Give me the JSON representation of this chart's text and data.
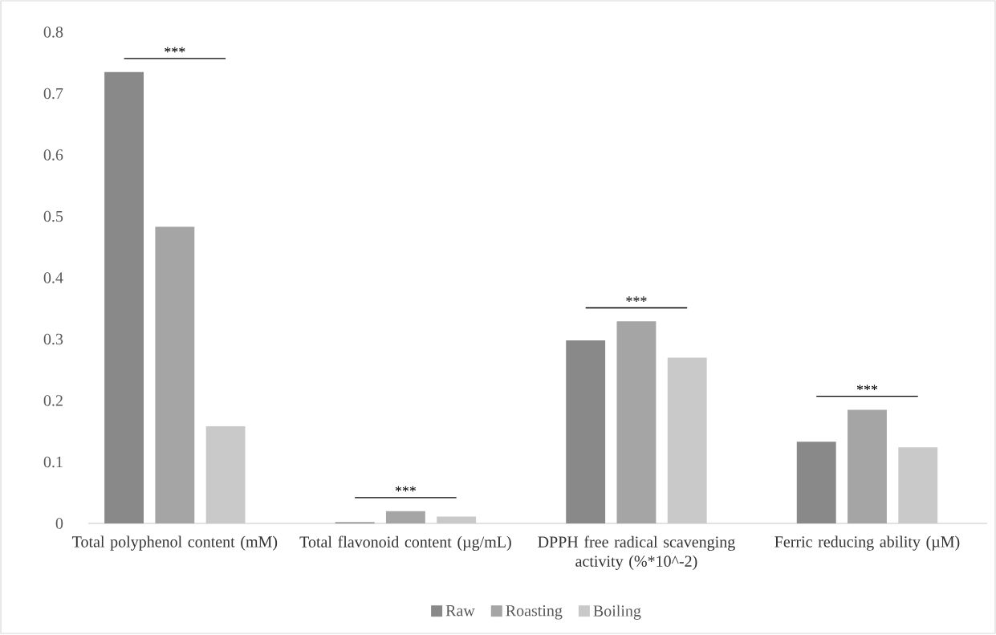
{
  "chart_data": {
    "type": "bar",
    "categories": [
      "Total polyphenol content (mM)",
      "Total flavonoid content (µg/mL)",
      "DPPH free radical scavenging activity (%*10^-2)",
      "Ferric reducing ability (µM)"
    ],
    "series": [
      {
        "name": "Raw",
        "color": "#898989",
        "values": [
          0.735,
          0.002,
          0.298,
          0.133
        ]
      },
      {
        "name": "Roasting",
        "color": "#a5a5a5",
        "values": [
          0.483,
          0.02,
          0.329,
          0.185
        ]
      },
      {
        "name": "Boiling",
        "color": "#c9c9c9",
        "values": [
          0.158,
          0.011,
          0.27,
          0.124
        ]
      }
    ],
    "ylim": [
      0,
      0.8
    ],
    "yticks": [
      0,
      0.1,
      0.2,
      0.3,
      0.4,
      0.5,
      0.6,
      0.7,
      0.8
    ],
    "grid": false,
    "legend": "bottom",
    "annotations": [
      "***",
      "***",
      "***",
      "***"
    ]
  }
}
